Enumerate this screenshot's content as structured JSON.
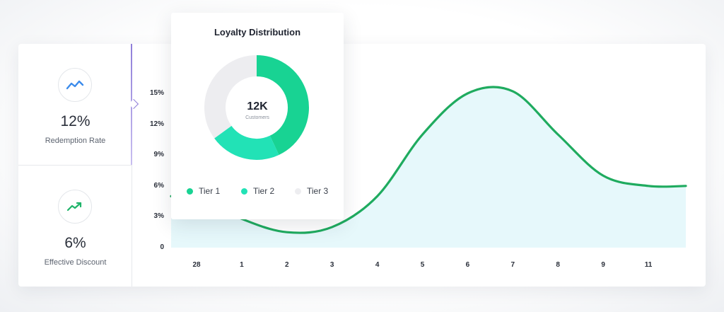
{
  "metrics": [
    {
      "value": "12%",
      "label": "Redemption Rate",
      "icon": "trend-up-icon",
      "color": "#3b8beb"
    },
    {
      "value": "6%",
      "label": "Effective Discount",
      "icon": "trending-up-arrow-icon",
      "color": "#1fb46a"
    }
  ],
  "chart_data": [
    {
      "type": "area",
      "x": [
        "28",
        "1",
        "2",
        "3",
        "4",
        "5",
        "6",
        "7",
        "8",
        "9",
        "11"
      ],
      "series": [
        {
          "values": [
            5.0,
            2.8,
            1.5,
            2.0,
            5.0,
            11.0,
            15.0,
            15.2,
            11.0,
            7.0,
            6.0
          ]
        }
      ],
      "y_ticks": [
        "0",
        "3%",
        "6%",
        "9%",
        "12%",
        "15%"
      ],
      "ylim": [
        0,
        15
      ],
      "grid": false,
      "line_color": "#1fab5f",
      "fill_color": "#e6f8fb"
    },
    {
      "type": "pie",
      "title": "Loyalty Distribution",
      "center_value": "12K",
      "center_label": "Customers",
      "labels": [
        "Tier 1",
        "Tier 2",
        "Tier 3"
      ],
      "values": [
        43,
        22,
        35
      ],
      "colors": [
        "#18d393",
        "#22e2b6",
        "#ededf0"
      ]
    }
  ]
}
